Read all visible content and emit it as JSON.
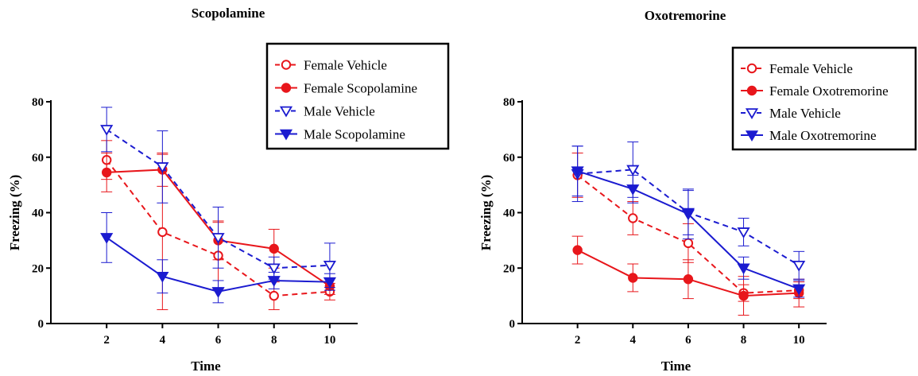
{
  "colors": {
    "red": "#e8161b",
    "blue": "#1b1bd0",
    "axis": "#000000"
  },
  "chart_data": [
    {
      "type": "line",
      "title": "Scopolamine",
      "xlabel": "Time",
      "ylabel": "Freezing (%)",
      "x": [
        2,
        4,
        6,
        8,
        10
      ],
      "xlim": [
        0,
        11
      ],
      "ylim": [
        0,
        80
      ],
      "xticks": [
        "2",
        "4",
        "6",
        "8",
        "10"
      ],
      "yticks": [
        "0",
        "20",
        "40",
        "60",
        "80"
      ],
      "legend_position": "top-right",
      "series": [
        {
          "name": "Female Vehicle",
          "color": "red",
          "dashed": true,
          "marker": "circle-open",
          "values": [
            59,
            33,
            24.5,
            10,
            11.5
          ],
          "errors": [
            7,
            28,
            12,
            5,
            3
          ]
        },
        {
          "name": "Female Scopolamine",
          "color": "red",
          "dashed": false,
          "marker": "circle-filled",
          "values": [
            54.5,
            55.5,
            30,
            27,
            13.5
          ],
          "errors": [
            7,
            6,
            7,
            7,
            3
          ]
        },
        {
          "name": "Male Vehicle",
          "color": "blue",
          "dashed": true,
          "marker": "triangle-down-open",
          "values": [
            70,
            56.5,
            31,
            20,
            21
          ],
          "errors": [
            8,
            13,
            11,
            4,
            8
          ]
        },
        {
          "name": "Male Scopolamine",
          "color": "blue",
          "dashed": false,
          "marker": "triangle-down-filled",
          "values": [
            31,
            17,
            11.5,
            15.5,
            15
          ],
          "errors": [
            9,
            6,
            4,
            3,
            3
          ]
        }
      ]
    },
    {
      "type": "line",
      "title": "Oxotremorine",
      "xlabel": "Time",
      "ylabel": "Freezing (%)",
      "x": [
        2,
        4,
        6,
        8,
        10
      ],
      "xlim": [
        0,
        11
      ],
      "ylim": [
        0,
        80
      ],
      "xticks": [
        "2",
        "4",
        "6",
        "8",
        "10"
      ],
      "yticks": [
        "0",
        "20",
        "40",
        "60",
        "80"
      ],
      "legend_position": "top-right",
      "series": [
        {
          "name": "Female Vehicle",
          "color": "red",
          "dashed": true,
          "marker": "circle-open",
          "values": [
            53.5,
            38,
            29,
            11,
            12
          ],
          "errors": [
            8,
            6,
            7,
            3,
            3
          ]
        },
        {
          "name": "Female Oxotremorine",
          "color": "red",
          "dashed": false,
          "marker": "circle-filled",
          "values": [
            26.5,
            16.5,
            16,
            10,
            11
          ],
          "errors": [
            5,
            5,
            7,
            7,
            5
          ]
        },
        {
          "name": "Male Vehicle",
          "color": "blue",
          "dashed": true,
          "marker": "triangle-down-open",
          "values": [
            54,
            55.5,
            40,
            33,
            21
          ],
          "errors": [
            10,
            10,
            8,
            5,
            5
          ]
        },
        {
          "name": "Male Oxotremorine",
          "color": "blue",
          "dashed": false,
          "marker": "triangle-down-filled",
          "values": [
            55,
            48.5,
            39.5,
            20,
            12.5
          ],
          "errors": [
            9,
            5,
            9,
            4,
            3
          ]
        }
      ]
    }
  ]
}
